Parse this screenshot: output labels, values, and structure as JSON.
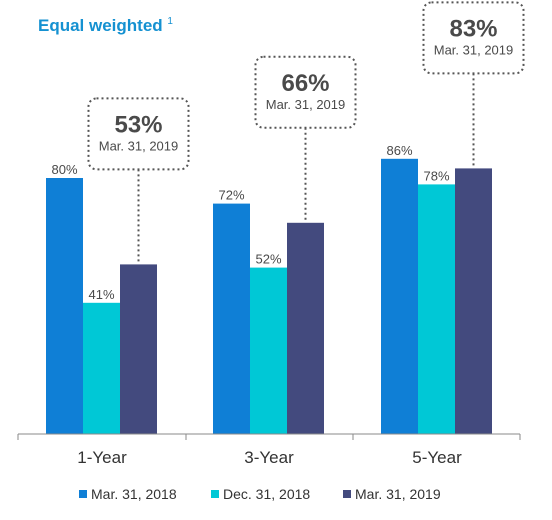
{
  "title": {
    "text": "Equal weighted",
    "superscript": "1",
    "color": "#1591d1"
  },
  "chart_data": {
    "type": "bar",
    "title": "Equal weighted",
    "categories": [
      "1-Year",
      "3-Year",
      "5-Year"
    ],
    "series": [
      {
        "name": "Mar. 31, 2018",
        "values": [
          80,
          72,
          86
        ],
        "labels": [
          "80%",
          "72%",
          "86%"
        ],
        "color": "#0f7fd6"
      },
      {
        "name": "Dec. 31, 2018",
        "values": [
          41,
          52,
          78
        ],
        "labels": [
          "41%",
          "52%",
          "78%"
        ],
        "color": "#00c8d6"
      },
      {
        "name": "Mar. 31, 2019",
        "values": [
          53,
          66,
          83
        ],
        "labels": [],
        "color": "#434a7e"
      }
    ],
    "callouts": [
      {
        "category": "1-Year",
        "value": "53%",
        "date": "Mar. 31, 2019"
      },
      {
        "category": "3-Year",
        "value": "66%",
        "date": "Mar. 31, 2019"
      },
      {
        "category": "5-Year",
        "value": "83%",
        "date": "Mar. 31, 2019"
      }
    ],
    "ylim": [
      0,
      100
    ],
    "grid": false,
    "legend": "bottom"
  }
}
